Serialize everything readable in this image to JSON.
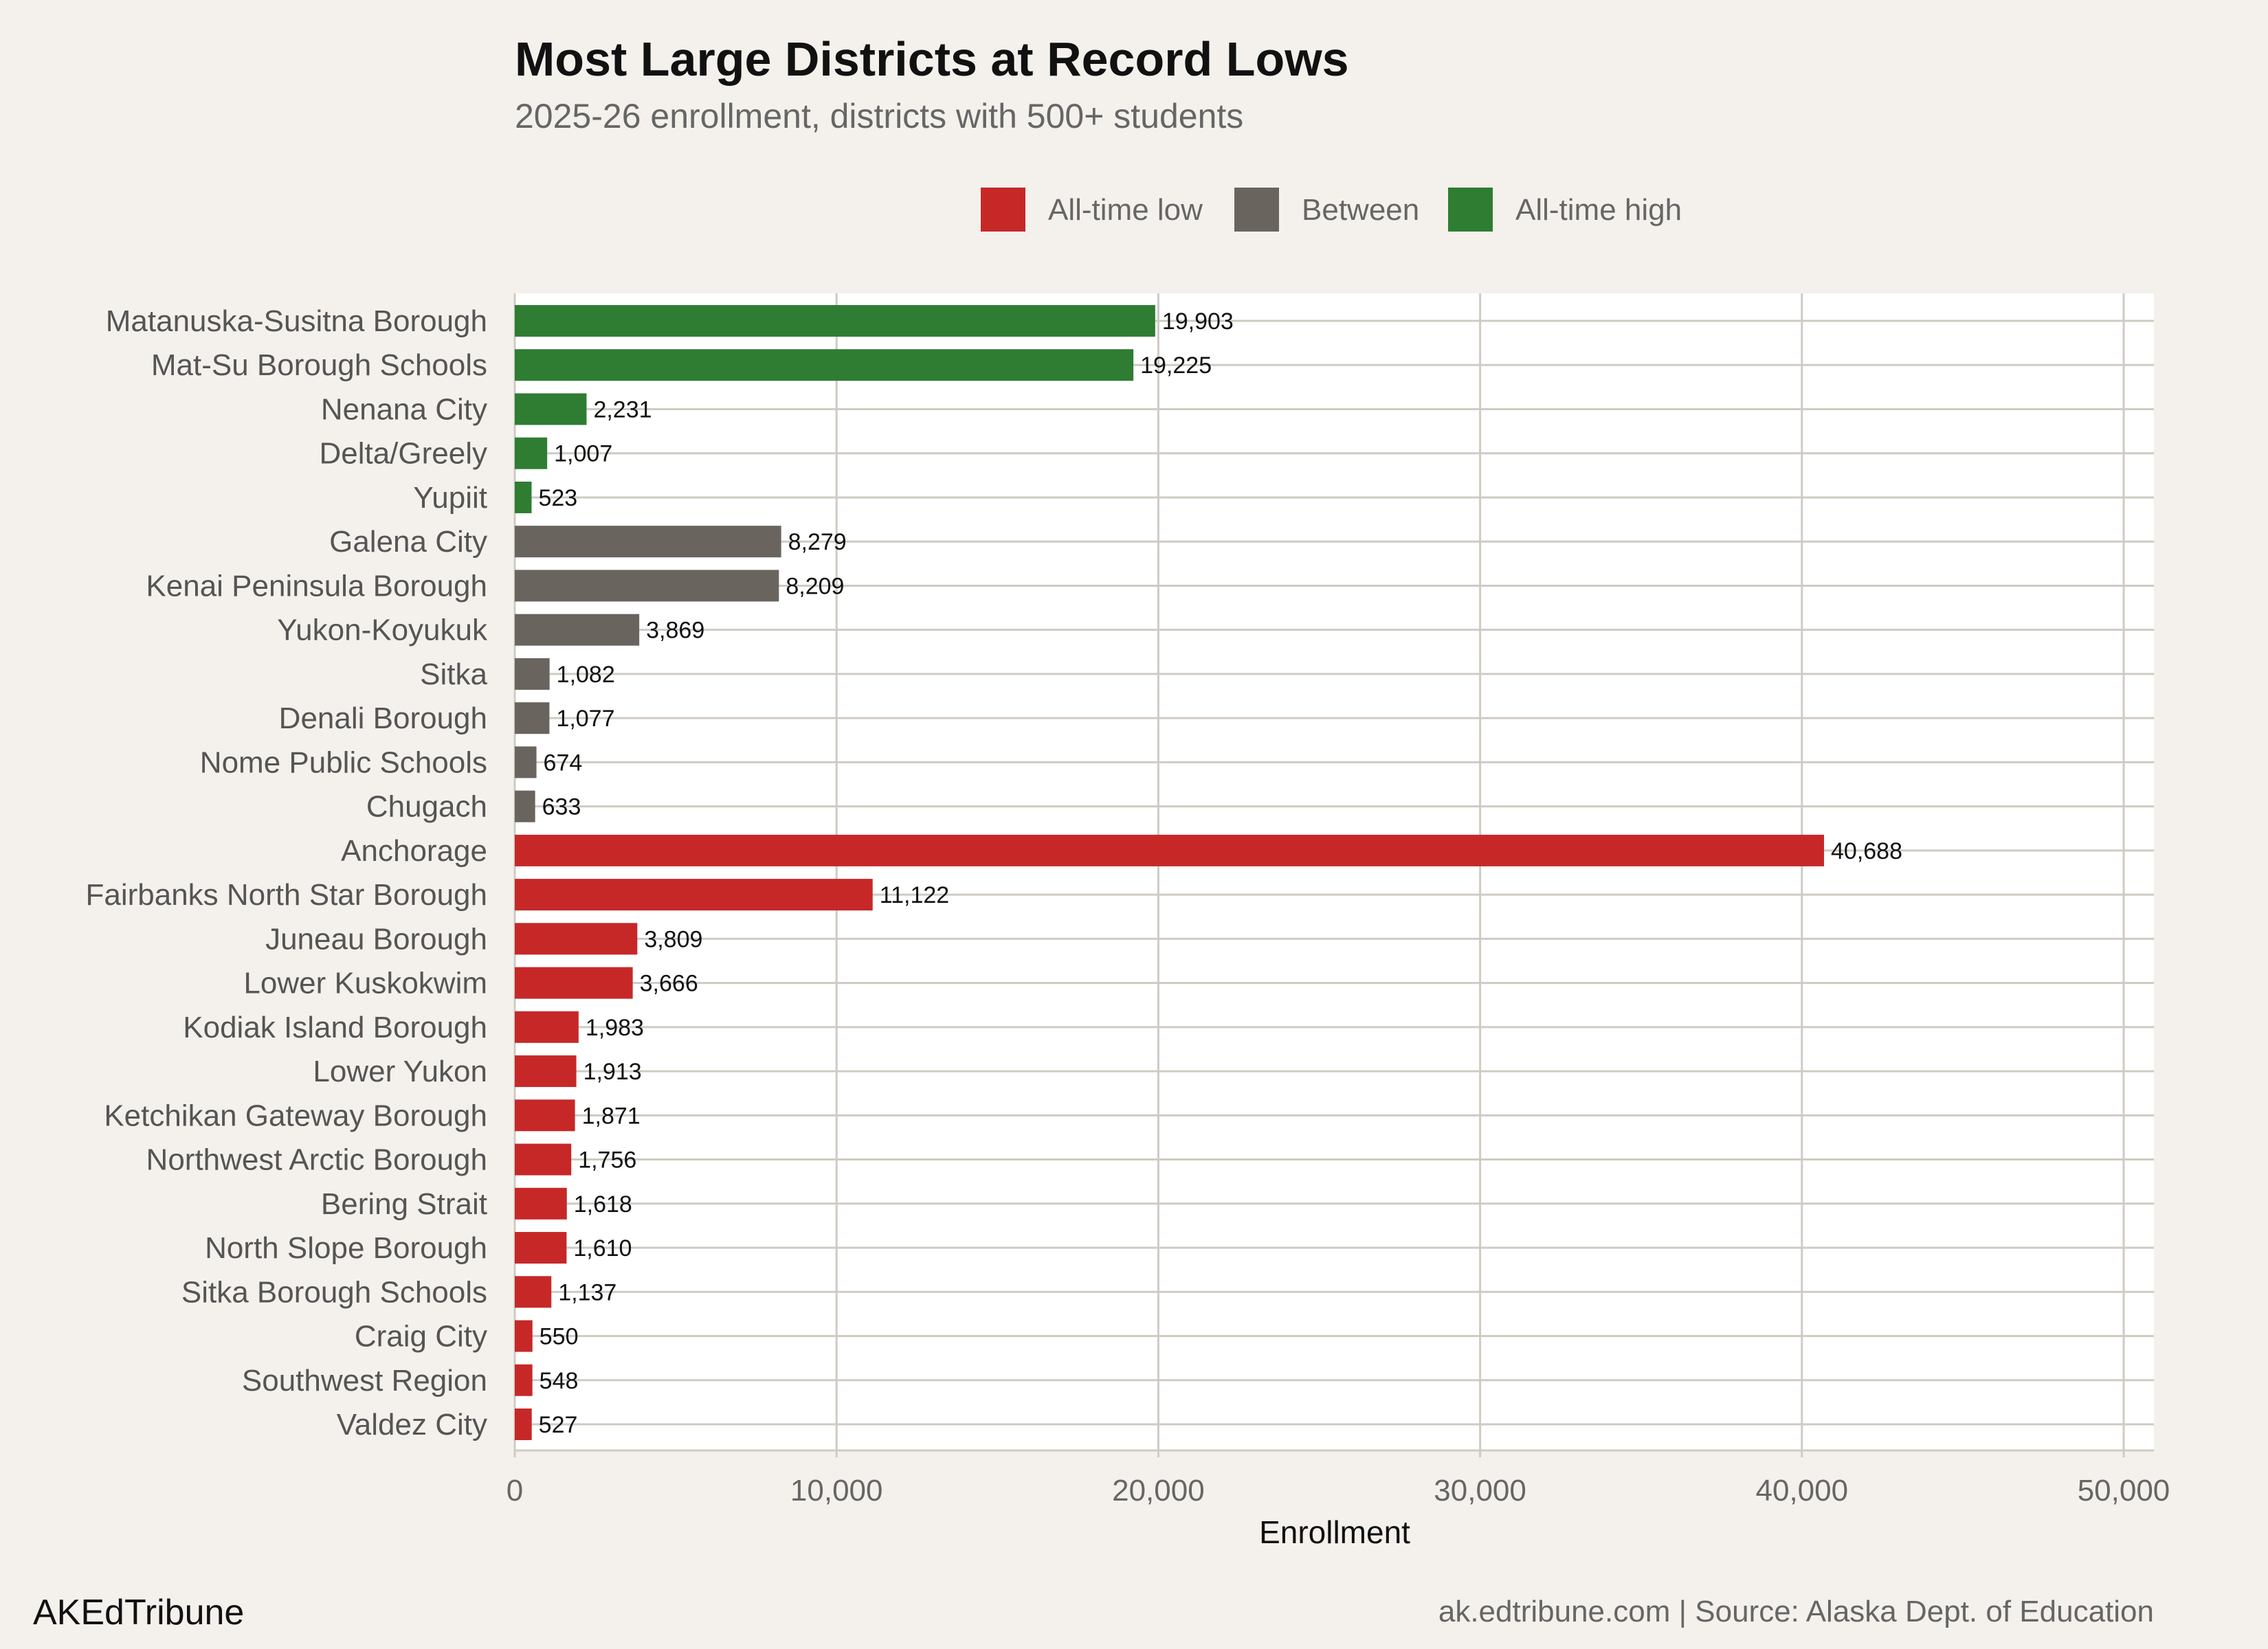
{
  "chart_data": {
    "type": "bar",
    "orientation": "horizontal",
    "title": "Most Large Districts at Record Lows",
    "subtitle": "2025-26 enrollment, districts with 500+ students",
    "xlabel": "Enrollment",
    "ylabel": "",
    "xlim": [
      0,
      50000
    ],
    "x_ticks": [
      0,
      10000,
      20000,
      30000,
      40000,
      50000
    ],
    "x_tick_labels": [
      "0",
      "10,000",
      "20,000",
      "30,000",
      "40,000",
      "50,000"
    ],
    "grid": true,
    "legend_placement": "top",
    "legend": [
      {
        "key": "low",
        "label": "All-time low",
        "color": "#C62828"
      },
      {
        "key": "between",
        "label": "Between",
        "color": "#69645E"
      },
      {
        "key": "high",
        "label": "All-time high",
        "color": "#2E7D32"
      }
    ],
    "bars": [
      {
        "category": "Matanuska-Susitna Borough",
        "value": 19903,
        "label": "19,903",
        "status": "high"
      },
      {
        "category": "Mat-Su Borough Schools",
        "value": 19225,
        "label": "19,225",
        "status": "high"
      },
      {
        "category": "Nenana City",
        "value": 2231,
        "label": "2,231",
        "status": "high"
      },
      {
        "category": "Delta/Greely",
        "value": 1007,
        "label": "1,007",
        "status": "high"
      },
      {
        "category": "Yupiit",
        "value": 523,
        "label": "523",
        "status": "high"
      },
      {
        "category": "Galena City",
        "value": 8279,
        "label": "8,279",
        "status": "between"
      },
      {
        "category": "Kenai Peninsula Borough",
        "value": 8209,
        "label": "8,209",
        "status": "between"
      },
      {
        "category": "Yukon-Koyukuk",
        "value": 3869,
        "label": "3,869",
        "status": "between"
      },
      {
        "category": "Sitka",
        "value": 1082,
        "label": "1,082",
        "status": "between"
      },
      {
        "category": "Denali Borough",
        "value": 1077,
        "label": "1,077",
        "status": "between"
      },
      {
        "category": "Nome Public Schools",
        "value": 674,
        "label": "674",
        "status": "between"
      },
      {
        "category": "Chugach",
        "value": 633,
        "label": "633",
        "status": "between"
      },
      {
        "category": "Anchorage",
        "value": 40688,
        "label": "40,688",
        "status": "low"
      },
      {
        "category": "Fairbanks North Star Borough",
        "value": 11122,
        "label": "11,122",
        "status": "low"
      },
      {
        "category": "Juneau Borough",
        "value": 3809,
        "label": "3,809",
        "status": "low"
      },
      {
        "category": "Lower Kuskokwim",
        "value": 3666,
        "label": "3,666",
        "status": "low"
      },
      {
        "category": "Kodiak Island Borough",
        "value": 1983,
        "label": "1,983",
        "status": "low"
      },
      {
        "category": "Lower Yukon",
        "value": 1913,
        "label": "1,913",
        "status": "low"
      },
      {
        "category": "Ketchikan Gateway Borough",
        "value": 1871,
        "label": "1,871",
        "status": "low"
      },
      {
        "category": "Northwest Arctic Borough",
        "value": 1756,
        "label": "1,756",
        "status": "low"
      },
      {
        "category": "Bering Strait",
        "value": 1618,
        "label": "1,618",
        "status": "low"
      },
      {
        "category": "North Slope Borough",
        "value": 1610,
        "label": "1,610",
        "status": "low"
      },
      {
        "category": "Sitka Borough Schools",
        "value": 1137,
        "label": "1,137",
        "status": "low"
      },
      {
        "category": "Craig City",
        "value": 550,
        "label": "550",
        "status": "low"
      },
      {
        "category": "Southwest Region",
        "value": 548,
        "label": "548",
        "status": "low"
      },
      {
        "category": "Valdez City",
        "value": 527,
        "label": "527",
        "status": "low"
      }
    ]
  },
  "footer": {
    "brand": "AKEdTribune",
    "source": "ak.edtribune.com | Source: Alaska Dept. of Education"
  },
  "colors": {
    "background": "#F4F1EC",
    "panel": "#FFFFFF",
    "grid": "#CFCBC3"
  }
}
